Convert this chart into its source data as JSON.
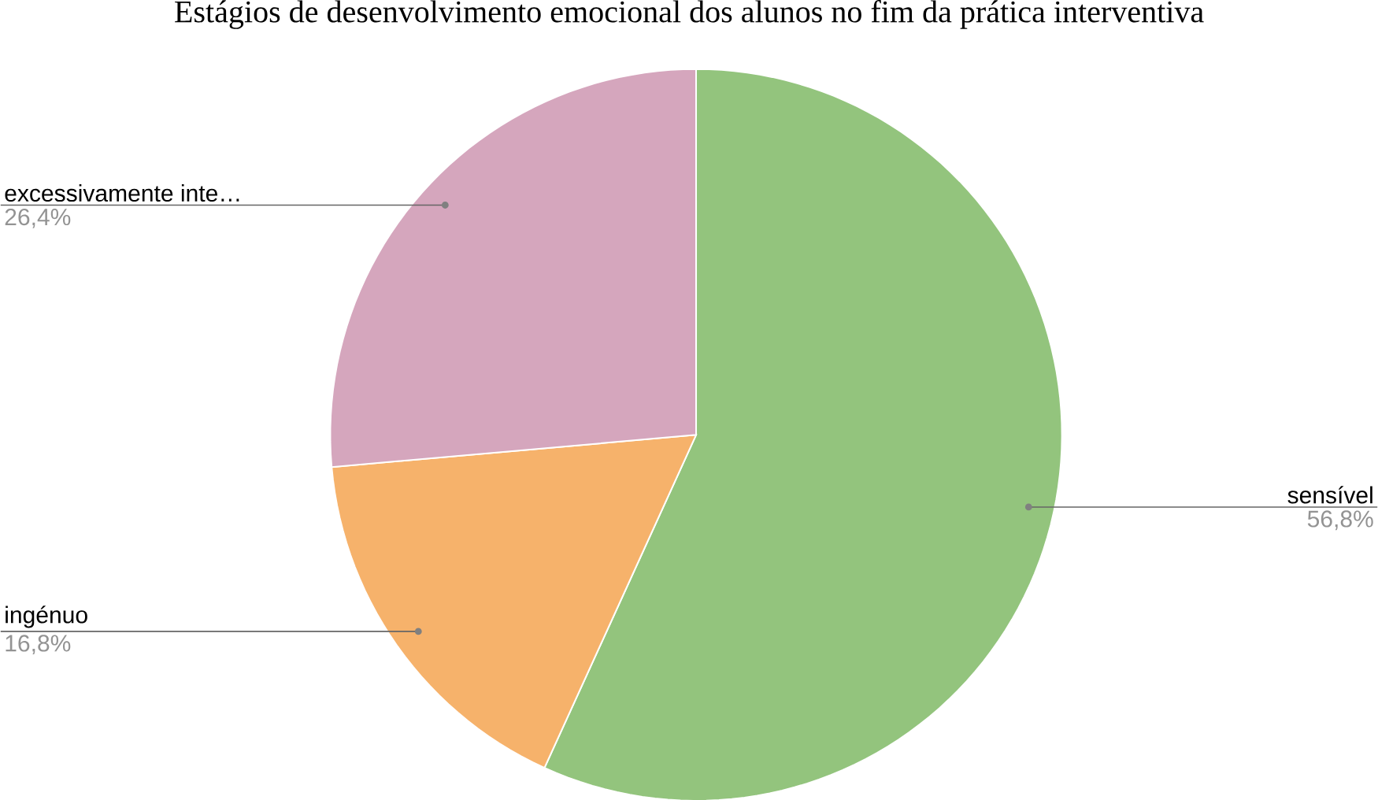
{
  "chart_data": {
    "type": "pie",
    "title": "Estágios de desenvolvimento emocional dos alunos no fim da prática interventiva",
    "categories": [
      "sensível",
      "ingénuo",
      "excessivamente inte…"
    ],
    "values": [
      56.8,
      16.8,
      26.4
    ],
    "colors": [
      "#93c47d",
      "#f6b26b",
      "#d5a6bd"
    ],
    "value_labels": [
      "56,8%",
      "16,8%",
      "26,4%"
    ]
  }
}
